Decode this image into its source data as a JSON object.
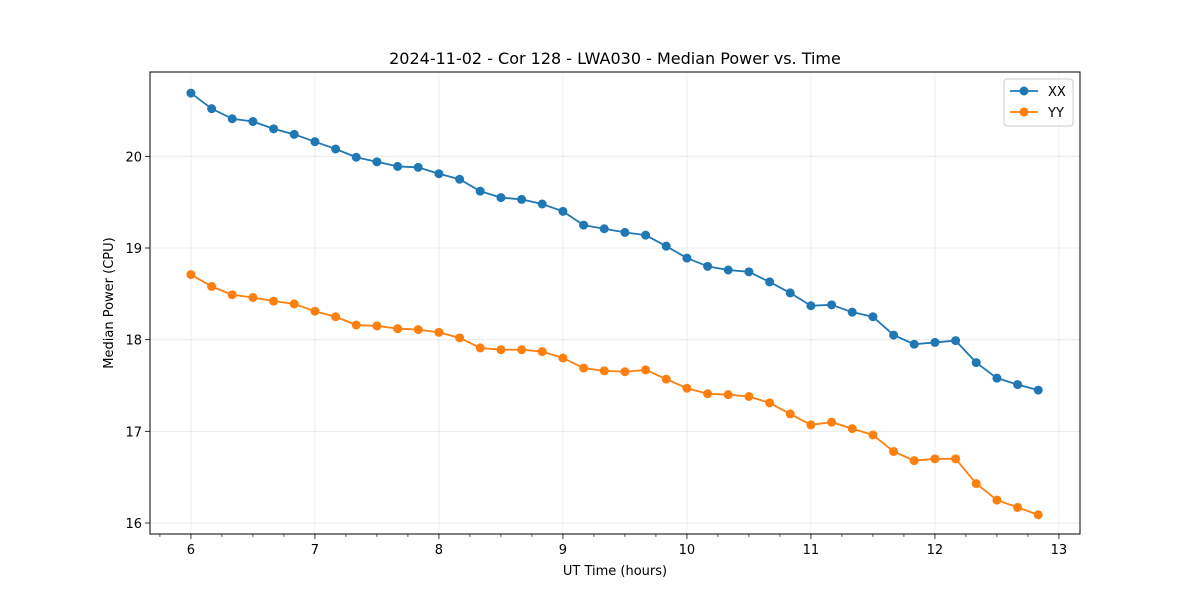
{
  "chart_data": {
    "type": "line",
    "title": "2024-11-02 - Cor 128 - LWA030 - Median Power vs. Time",
    "xlabel": "UT Time (hours)",
    "ylabel": "Median Power (CPU)",
    "xlim": [
      5.67,
      13.17
    ],
    "ylim": [
      15.88,
      20.92
    ],
    "xticks": [
      6,
      7,
      8,
      9,
      10,
      11,
      12,
      13
    ],
    "xtick_labels": [
      "6",
      "7",
      "8",
      "9",
      "10",
      "11",
      "12",
      "13"
    ],
    "xminor_step": 0.25,
    "yticks": [
      16,
      17,
      18,
      19,
      20
    ],
    "ytick_labels": [
      "16",
      "17",
      "18",
      "19",
      "20"
    ],
    "grid": true,
    "legend_position": "top-right",
    "x": [
      6.0,
      6.167,
      6.333,
      6.5,
      6.667,
      6.833,
      7.0,
      7.167,
      7.333,
      7.5,
      7.667,
      7.833,
      8.0,
      8.167,
      8.333,
      8.5,
      8.667,
      8.833,
      9.0,
      9.167,
      9.333,
      9.5,
      9.667,
      9.833,
      10.0,
      10.167,
      10.333,
      10.5,
      10.667,
      10.833,
      11.0,
      11.167,
      11.333,
      11.5,
      11.667,
      11.833,
      12.0,
      12.167,
      12.333,
      12.5,
      12.667,
      12.833
    ],
    "series": [
      {
        "name": "XX",
        "color": "#1f77b4",
        "values": [
          20.69,
          20.52,
          20.41,
          20.38,
          20.3,
          20.24,
          20.16,
          20.08,
          19.99,
          19.94,
          19.89,
          19.88,
          19.81,
          19.75,
          19.62,
          19.55,
          19.53,
          19.48,
          19.4,
          19.25,
          19.21,
          19.17,
          19.14,
          19.02,
          18.89,
          18.8,
          18.76,
          18.74,
          18.63,
          18.51,
          18.37,
          18.38,
          18.3,
          18.25,
          18.05,
          17.95,
          17.97,
          17.99,
          17.75,
          17.58,
          17.51,
          17.45
        ]
      },
      {
        "name": "YY",
        "color": "#ff7f0e",
        "values": [
          18.71,
          18.58,
          18.49,
          18.46,
          18.42,
          18.39,
          18.31,
          18.25,
          18.16,
          18.15,
          18.12,
          18.11,
          18.08,
          18.02,
          17.91,
          17.89,
          17.89,
          17.87,
          17.8,
          17.69,
          17.66,
          17.65,
          17.67,
          17.57,
          17.47,
          17.41,
          17.4,
          17.38,
          17.31,
          17.19,
          17.07,
          17.1,
          17.03,
          16.96,
          16.78,
          16.68,
          16.7,
          16.7,
          16.43,
          16.25,
          16.17,
          16.09
        ]
      }
    ]
  }
}
